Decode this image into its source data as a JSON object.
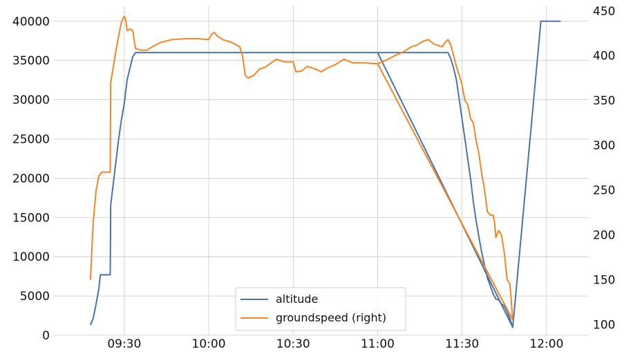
{
  "chart_data": {
    "type": "line",
    "x_unit": "time (HH:MM)",
    "xlim": [
      "09:05",
      "12:15"
    ],
    "x_ticks": [
      "09:30",
      "10:00",
      "10:30",
      "11:00",
      "11:30",
      "12:00"
    ],
    "y_left": {
      "lim": [
        0,
        42000
      ],
      "ticks": [
        0,
        5000,
        10000,
        15000,
        20000,
        25000,
        30000,
        35000,
        40000
      ],
      "tick_labels": [
        "0",
        "5000",
        "10000",
        "15000",
        "20000",
        "25000",
        "30000",
        "35000",
        "40000"
      ]
    },
    "y_right": {
      "lim": [
        88,
        456
      ],
      "ticks": [
        100,
        150,
        200,
        250,
        300,
        350,
        400,
        450
      ],
      "tick_labels": [
        "100",
        "150",
        "200",
        "250",
        "300",
        "350",
        "400",
        "450"
      ]
    },
    "grid": true,
    "legend_position": "bottom-center",
    "series": [
      {
        "name": "altitude",
        "axis": "left",
        "color": "#4c72a4",
        "points": [
          [
            "09:18",
            1300
          ],
          [
            "09:19",
            2200
          ],
          [
            "09:20",
            4000
          ],
          [
            "09:21",
            6000
          ],
          [
            "09:21:30",
            7700
          ],
          [
            "09:25",
            7700
          ],
          [
            "09:25:10",
            16600
          ],
          [
            "09:26",
            19000
          ],
          [
            "09:27",
            22000
          ],
          [
            "09:28",
            25000
          ],
          [
            "09:29",
            27500
          ],
          [
            "09:30",
            29500
          ],
          [
            "09:31",
            32500
          ],
          [
            "09:32",
            34000
          ],
          [
            "09:33",
            35500
          ],
          [
            "09:34",
            36000
          ],
          [
            "11:00",
            36000
          ],
          [
            "11:25",
            36000
          ],
          [
            "11:26",
            35200
          ],
          [
            "11:27",
            34000
          ],
          [
            "11:28",
            32500
          ],
          [
            "11:29",
            30000
          ],
          [
            "11:30",
            27500
          ],
          [
            "11:31",
            25000
          ],
          [
            "11:32",
            22500
          ],
          [
            "11:33",
            20000
          ],
          [
            "11:34",
            17000
          ],
          [
            "11:35",
            14500
          ],
          [
            "11:36",
            12500
          ],
          [
            "11:37",
            10500
          ],
          [
            "11:38",
            8900
          ],
          [
            "11:39",
            7300
          ],
          [
            "11:40",
            6300
          ],
          [
            "11:41",
            5300
          ],
          [
            "11:42",
            4600
          ],
          [
            "11:43",
            4500
          ],
          [
            "11:44",
            4000
          ],
          [
            "11:45",
            3700
          ],
          [
            "11:46",
            3000
          ],
          [
            "11:47",
            2100
          ],
          [
            "11:48",
            1000
          ],
          [
            "11:58",
            40000
          ],
          [
            "12:05",
            40000
          ]
        ],
        "extra_segments": [
          [
            [
              "11:00",
              36000
            ],
            [
              "11:48",
              1000
            ]
          ]
        ]
      },
      {
        "name": "groundspeed (right)",
        "axis": "right",
        "color": "#f28527",
        "points": [
          [
            "09:18",
            150
          ],
          [
            "09:18:30",
            185
          ],
          [
            "09:19",
            215
          ],
          [
            "09:20",
            250
          ],
          [
            "09:21",
            266
          ],
          [
            "09:22",
            270
          ],
          [
            "09:25",
            270
          ],
          [
            "09:25:10",
            370
          ],
          [
            "09:26",
            385
          ],
          [
            "09:27",
            405
          ],
          [
            "09:28",
            422
          ],
          [
            "09:29",
            438
          ],
          [
            "09:30",
            444
          ],
          [
            "09:30:30",
            440
          ],
          [
            "09:31",
            428
          ],
          [
            "09:32",
            430
          ],
          [
            "09:33",
            428
          ],
          [
            "09:34",
            408
          ],
          [
            "09:36",
            406
          ],
          [
            "09:38",
            406
          ],
          [
            "09:40",
            410
          ],
          [
            "09:43",
            415
          ],
          [
            "09:47",
            418
          ],
          [
            "09:52",
            419
          ],
          [
            "09:56",
            419
          ],
          [
            "10:00",
            418
          ],
          [
            "10:01",
            424
          ],
          [
            "10:02",
            426
          ],
          [
            "10:03",
            422
          ],
          [
            "10:05",
            418
          ],
          [
            "10:08",
            415
          ],
          [
            "10:11",
            410
          ],
          [
            "10:12",
            400
          ],
          [
            "10:13",
            378
          ],
          [
            "10:14",
            375
          ],
          [
            "10:16",
            378
          ],
          [
            "10:18",
            385
          ],
          [
            "10:20",
            387
          ],
          [
            "10:24",
            396
          ],
          [
            "10:27",
            393
          ],
          [
            "10:30",
            393
          ],
          [
            "10:31",
            382
          ],
          [
            "10:33",
            383
          ],
          [
            "10:35",
            388
          ],
          [
            "10:38",
            385
          ],
          [
            "10:40",
            382
          ],
          [
            "10:42",
            386
          ],
          [
            "10:45",
            390
          ],
          [
            "10:48",
            396
          ],
          [
            "10:51",
            392
          ],
          [
            "10:55",
            392
          ],
          [
            "11:00",
            391
          ],
          [
            "11:03",
            395
          ],
          [
            "11:06",
            400
          ],
          [
            "11:09",
            404
          ],
          [
            "11:12",
            410
          ],
          [
            "11:14",
            412
          ],
          [
            "11:16",
            416
          ],
          [
            "11:18",
            418
          ],
          [
            "11:20",
            413
          ],
          [
            "11:23",
            410
          ],
          [
            "11:24",
            415
          ],
          [
            "11:25",
            418
          ],
          [
            "11:26",
            412
          ],
          [
            "11:27",
            400
          ],
          [
            "11:28",
            388
          ],
          [
            "11:29",
            378
          ],
          [
            "11:30",
            367
          ],
          [
            "11:31",
            350
          ],
          [
            "11:32",
            346
          ],
          [
            "11:33",
            330
          ],
          [
            "11:34",
            325
          ],
          [
            "11:35",
            305
          ],
          [
            "11:36",
            290
          ],
          [
            "11:37",
            268
          ],
          [
            "11:38",
            250
          ],
          [
            "11:39",
            226
          ],
          [
            "11:40",
            222
          ],
          [
            "11:41",
            222
          ],
          [
            "11:41:30",
            215
          ],
          [
            "11:42",
            197
          ],
          [
            "11:43",
            205
          ],
          [
            "11:44",
            200
          ],
          [
            "11:45",
            180
          ],
          [
            "11:46",
            150
          ],
          [
            "11:47",
            145
          ],
          [
            "11:48",
            105
          ]
        ],
        "extra_segments": [
          [
            [
              "11:00",
              391
            ],
            [
              "11:48",
              105
            ]
          ]
        ]
      }
    ]
  }
}
